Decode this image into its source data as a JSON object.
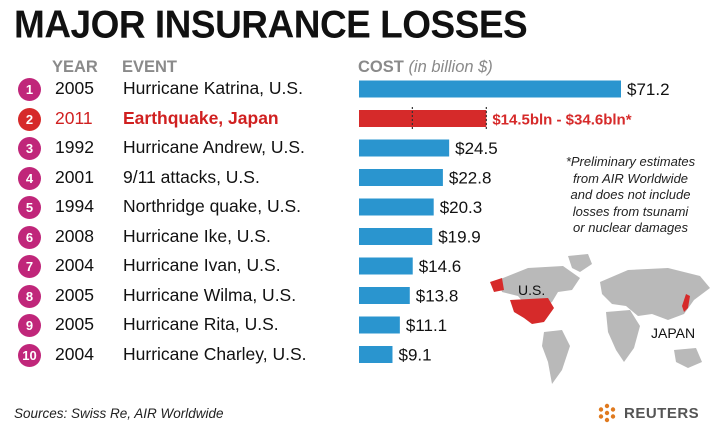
{
  "title": "MAJOR INSURANCE LOSSES",
  "headers": {
    "year": "YEAR",
    "event": "EVENT",
    "cost": "COST",
    "cost_unit": "(in billion $)"
  },
  "rows": [
    {
      "rank": "1",
      "year": "2005",
      "event": "Hurricane Katrina, U.S.",
      "label": "$71.2"
    },
    {
      "rank": "2",
      "year": "2011",
      "event": "Earthquake, Japan",
      "label": "$14.5bln - $34.6bln*"
    },
    {
      "rank": "3",
      "year": "1992",
      "event": "Hurricane Andrew, U.S.",
      "label": "$24.5"
    },
    {
      "rank": "4",
      "year": "2001",
      "event": "9/11 attacks, U.S.",
      "label": "$22.8"
    },
    {
      "rank": "5",
      "year": "1994",
      "event": "Northridge quake, U.S.",
      "label": "$20.3"
    },
    {
      "rank": "6",
      "year": "2008",
      "event": "Hurricane Ike, U.S.",
      "label": "$19.9"
    },
    {
      "rank": "7",
      "year": "2004",
      "event": "Hurricane Ivan, U.S.",
      "label": "$14.6"
    },
    {
      "rank": "8",
      "year": "2005",
      "event": "Hurricane Wilma, U.S.",
      "label": "$13.8"
    },
    {
      "rank": "9",
      "year": "2005",
      "event": "Hurricane Rita, U.S.",
      "label": "$11.1"
    },
    {
      "rank": "10",
      "year": "2004",
      "event": "Hurricane Charley, U.S.",
      "label": "$9.1"
    }
  ],
  "note_lines": [
    "*Preliminary estimates",
    "from AIR Worldwide",
    "and does not include",
    "losses from tsunami",
    "or nuclear damages"
  ],
  "map_labels": {
    "us": "U.S.",
    "japan": "JAPAN"
  },
  "source": "Sources: Swiss Re, AIR Worldwide",
  "brand": "REUTERS",
  "colors": {
    "bar": "#2a95cf",
    "highlight": "#d62a2a",
    "rank_badge": "#c0267a"
  },
  "chart_data": {
    "type": "bar",
    "orientation": "horizontal",
    "title": "MAJOR INSURANCE LOSSES",
    "xlabel": "COST (in billion $)",
    "categories": [
      "Hurricane Katrina, U.S.",
      "Earthquake, Japan",
      "Hurricane Andrew, U.S.",
      "9/11 attacks, U.S.",
      "Northridge quake, U.S.",
      "Hurricane Ike, U.S.",
      "Hurricane Ivan, U.S.",
      "Hurricane Wilma, U.S.",
      "Hurricane Rita, U.S.",
      "Hurricane Charley, U.S."
    ],
    "years": [
      "2005",
      "2011",
      "1992",
      "2001",
      "1994",
      "2008",
      "2004",
      "2005",
      "2005",
      "2004"
    ],
    "values": [
      71.2,
      null,
      24.5,
      22.8,
      20.3,
      19.9,
      14.6,
      13.8,
      11.1,
      9.1
    ],
    "ranges": [
      null,
      [
        14.5,
        34.6
      ],
      null,
      null,
      null,
      null,
      null,
      null,
      null,
      null
    ],
    "highlight_index": 1,
    "xlim": [
      0,
      71.2
    ],
    "grid": false,
    "legend": "none"
  }
}
